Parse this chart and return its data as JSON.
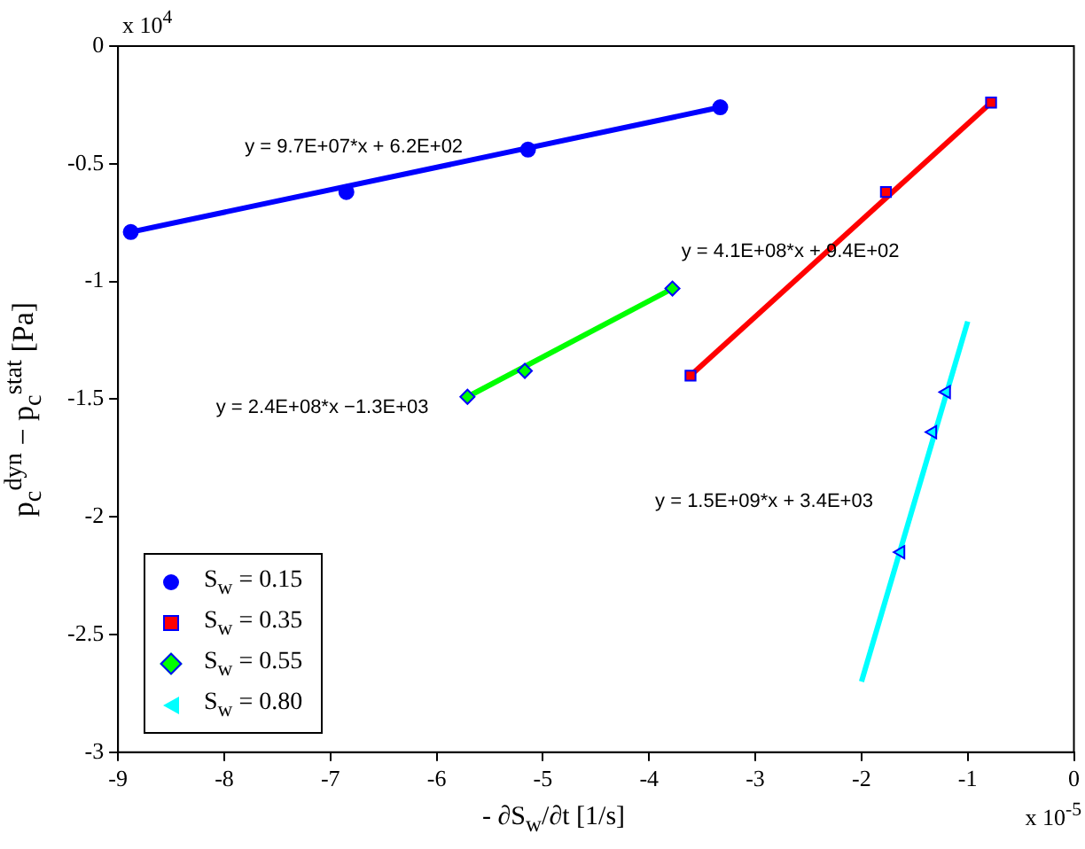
{
  "chart_data": {
    "type": "scatter",
    "xlabel": "- ∂S$_{w}$/∂t [1/s]",
    "ylabel": "p$_{c}$$^{dyn}$ − p$_{c}$$^{stat}$ [Pa]",
    "xlim": [
      -9,
      0
    ],
    "xticks": [
      -9,
      -8,
      -7,
      -6,
      -5,
      -4,
      -3,
      -2,
      -1,
      0
    ],
    "ylim": [
      -3,
      0
    ],
    "yticks": [
      -3,
      -2.5,
      -2,
      -1.5,
      -1,
      -0.5,
      0
    ],
    "grid": false,
    "legend": "bottom left",
    "series": [
      {
        "name": "S$_{w}$ = 0.15",
        "marker": "circle",
        "color": "#0000ff",
        "x": [
          -8.88,
          -6.85,
          -5.14,
          -3.33
        ],
        "values": [
          -0.79,
          -0.62,
          -0.44,
          -0.26
        ]
      },
      {
        "name": "S$_{w}$ = 0.35",
        "marker": "square",
        "color": "#ff0000",
        "x": [
          -3.61,
          -1.77,
          -0.78
        ],
        "values": [
          -1.4,
          -0.62,
          -0.24
        ]
      },
      {
        "name": "S$_{w}$ = 0.55",
        "marker": "diamond",
        "color": "#00ff00",
        "x": [
          -5.71,
          -5.17,
          -3.78
        ],
        "values": [
          -1.49,
          -1.38,
          -1.03
        ]
      },
      {
        "name": "S$_{w}$ = 0.80",
        "marker": "triangle",
        "color": "#00ffff",
        "x": [
          -1.63,
          -1.33,
          -1.2
        ],
        "values": [
          -2.15,
          -1.64,
          -1.47
        ]
      },
      {
        "type": "line",
        "marker": "none",
        "color": "#0000ff",
        "x": [
          -8.88,
          -3.33
        ],
        "values": [
          -0.79,
          -0.26
        ]
      },
      {
        "type": "line",
        "marker": "none",
        "color": "#ff0000",
        "x": [
          -3.61,
          -0.78
        ],
        "values": [
          -1.4,
          -0.24
        ]
      },
      {
        "type": "line",
        "marker": "none",
        "color": "#00ff00",
        "x": [
          -5.71,
          -3.78
        ],
        "values": [
          -1.49,
          -1.03
        ]
      },
      {
        "type": "line",
        "marker": "none",
        "color": "#00ffff",
        "x": [
          -2.0,
          -1.0
        ],
        "values": [
          -2.7,
          -1.17
        ]
      }
    ],
    "annotations": [
      "y = 9.7E+07*x + 6.2E+02",
      "y = 4.1E+08*x + 9.4E+02",
      "y = 2.4E+08*x −1.3E+03",
      "y = 1.5E+09*x + 3.4E+03",
      "x 10$^{4}$",
      "x 10$^{-5}$"
    ]
  }
}
